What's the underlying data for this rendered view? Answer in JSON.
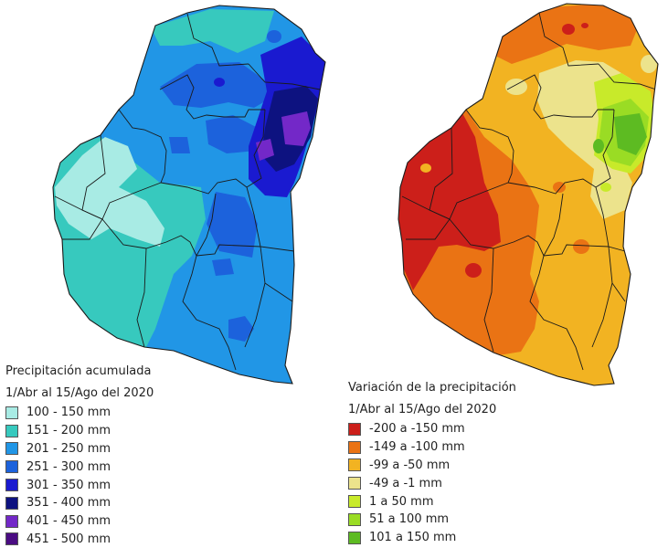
{
  "left_map": {
    "legend_title": "Precipitación acumulada",
    "legend_period": "1/Abr al 15/Ago del 2020",
    "classes": [
      {
        "label": "100 - 150 mm",
        "color": "#a8ebe4"
      },
      {
        "label": "151 - 200 mm",
        "color": "#37c9be"
      },
      {
        "label": "201 - 250 mm",
        "color": "#2196e6"
      },
      {
        "label": "251 - 300 mm",
        "color": "#1c62dc"
      },
      {
        "label": "301 - 350 mm",
        "color": "#1a1ad0"
      },
      {
        "label": "351 - 400 mm",
        "color": "#0d1280"
      },
      {
        "label": "401 - 450 mm",
        "color": "#7328c8"
      },
      {
        "label": "451 - 500 mm",
        "color": "#4a0c82"
      }
    ]
  },
  "right_map": {
    "legend_title": "Variación de la precipitación",
    "legend_period": "1/Abr al 15/Ago del 2020",
    "classes": [
      {
        "label": "-200 a -150 mm",
        "color": "#cc1f1a"
      },
      {
        "label": "-149 a -100 mm",
        "color": "#ea7314"
      },
      {
        "label": "-99 a -50 mm",
        "color": "#f2b322"
      },
      {
        "label": "-49 a -1 mm",
        "color": "#ece38c"
      },
      {
        "label": "1 a 50 mm",
        "color": "#c8ea2a"
      },
      {
        "label": "51 a 100 mm",
        "color": "#9adc24"
      },
      {
        "label": "101 a 150 mm",
        "color": "#5dbb22"
      }
    ]
  }
}
